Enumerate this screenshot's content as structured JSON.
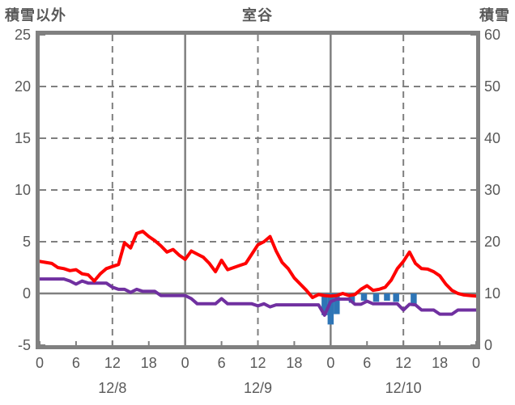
{
  "header": {
    "left_axis_title": "積雪以外",
    "chart_title": "室谷",
    "right_axis_title": "積雪"
  },
  "chart_data": {
    "type": "line+bar",
    "title": "室谷",
    "x_axis": {
      "unit": "hour",
      "span_hours": 72,
      "tick_interval_hours": 6,
      "tick_labels": [
        "0",
        "6",
        "12",
        "18",
        "0",
        "6",
        "12",
        "18",
        "0",
        "6",
        "12",
        "18",
        "0"
      ],
      "day_labels": [
        {
          "label": "12/8",
          "hour": 12
        },
        {
          "label": "12/9",
          "hour": 36
        },
        {
          "label": "12/10",
          "hour": 60
        }
      ]
    },
    "left_axis": {
      "title": "積雪以外",
      "min": -5,
      "max": 25,
      "ticks": [
        25,
        20,
        15,
        10,
        5,
        0,
        -5
      ]
    },
    "right_axis": {
      "title": "積雪",
      "min": 0,
      "max": 60,
      "ticks": [
        60,
        50,
        40,
        30,
        20,
        10,
        0
      ]
    },
    "gridlines": {
      "horizontal_dashed_left_values": [
        20,
        15,
        10,
        5
      ],
      "vertical_dashed_hours": [
        12,
        36,
        60
      ],
      "vertical_solid_hours": [
        24,
        48
      ],
      "zero_line_left_value": 0,
      "grid_on": true
    },
    "series": [
      {
        "name": "temperature-line",
        "color": "#ff0000",
        "axis": "left",
        "x_start_hour": 0,
        "x_step_hours": 1,
        "values": [
          3.1,
          3.0,
          2.9,
          2.5,
          2.4,
          2.2,
          2.3,
          1.9,
          1.8,
          1.2,
          1.9,
          2.4,
          2.6,
          2.8,
          4.9,
          4.4,
          5.8,
          6.0,
          5.5,
          5.1,
          4.6,
          4.0,
          4.25,
          3.7,
          3.3,
          4.1,
          3.8,
          3.5,
          2.9,
          2.1,
          3.2,
          2.3,
          2.5,
          2.7,
          2.9,
          3.8,
          4.7,
          5.0,
          5.5,
          4.1,
          3.0,
          2.4,
          1.5,
          0.9,
          0.3,
          -0.4,
          -0.1,
          -0.2,
          -0.25,
          -0.2,
          0.0,
          -0.2,
          -0.1,
          0.4,
          0.75,
          0.3,
          0.4,
          0.6,
          1.3,
          2.4,
          3.1,
          4.0,
          2.9,
          2.4,
          2.35,
          2.1,
          1.7,
          0.9,
          0.3,
          0.0,
          -0.15,
          -0.2,
          -0.25
        ]
      },
      {
        "name": "purple-line",
        "color": "#7030a0",
        "axis": "left",
        "x_start_hour": 0,
        "x_step_hours": 1,
        "values": [
          1.4,
          1.4,
          1.4,
          1.4,
          1.4,
          1.2,
          0.9,
          1.2,
          1.0,
          1.0,
          1.0,
          1.0,
          0.6,
          0.4,
          0.4,
          0.1,
          0.4,
          0.2,
          0.2,
          0.2,
          -0.2,
          -0.2,
          -0.2,
          -0.2,
          -0.2,
          -0.5,
          -1.0,
          -1.0,
          -1.0,
          -1.0,
          -0.5,
          -1.0,
          -1.0,
          -1.0,
          -1.0,
          -1.0,
          -1.2,
          -1.0,
          -1.3,
          -1.1,
          -1.1,
          -1.1,
          -1.1,
          -1.1,
          -1.1,
          -1.1,
          -1.1,
          -2.1,
          -0.8,
          -0.55,
          -0.55,
          -0.55,
          -1.05,
          -1.05,
          -0.75,
          -1.0,
          -1.0,
          -1.0,
          -1.0,
          -1.0,
          -1.6,
          -1.05,
          -1.1,
          -1.6,
          -1.6,
          -1.6,
          -2.0,
          -2.0,
          -2.0,
          -1.6,
          -1.6,
          -1.6,
          -1.6
        ]
      }
    ],
    "bars": {
      "name": "snow-bars",
      "color": "#2e75b6",
      "axis": "left",
      "baseline_left_value": 0,
      "bar_width_hours": 1,
      "points": [
        {
          "hour": 47,
          "value": -2.1
        },
        {
          "hour": 48,
          "value": -3.0
        },
        {
          "hour": 49,
          "value": -2.0
        },
        {
          "hour": 51.5,
          "value": -0.9
        },
        {
          "hour": 53.5,
          "value": -0.7
        },
        {
          "hour": 55.5,
          "value": -0.8
        },
        {
          "hour": 57.3,
          "value": -0.7
        },
        {
          "hour": 58.8,
          "value": -0.8
        },
        {
          "hour": 61.7,
          "value": -1.0
        }
      ]
    },
    "colors": {
      "frame": "#808080",
      "grid": "#7f7f7f",
      "text": "#595959",
      "red_series": "#ff0000",
      "purple_series": "#7030a0",
      "blue_bars": "#2e75b6"
    }
  }
}
